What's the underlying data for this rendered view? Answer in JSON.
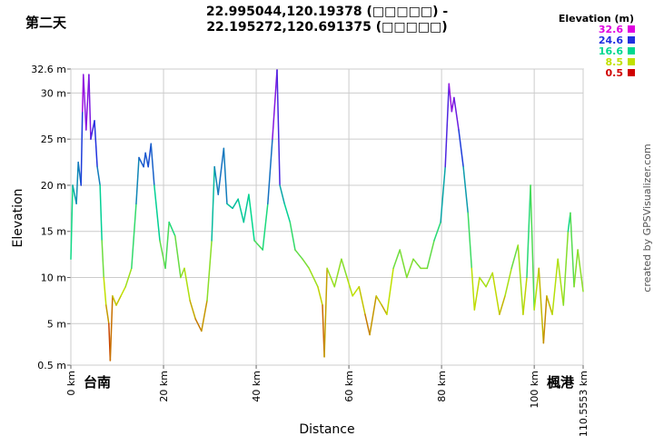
{
  "chart_data": {
    "type": "line",
    "corner_label": "第二天",
    "title_lines": [
      "22.995044,120.19378 (□□□□□) -",
      "22.195272,120.691375 (□□□□□)"
    ],
    "x_label": "Distance",
    "y_label": "Elevation",
    "credit": "created by GPSVisualizer.com",
    "annotations": [
      "台南",
      "楓港"
    ],
    "legend_title": "Elevation (m)",
    "color_scale": [
      {
        "value": 32.6,
        "color": "#e000e0"
      },
      {
        "value": 24.6,
        "color": "#2030e0"
      },
      {
        "value": 16.6,
        "color": "#00d890"
      },
      {
        "value": 8.5,
        "color": "#c0e000"
      },
      {
        "value": 0.5,
        "color": "#d00000"
      }
    ],
    "grid": true,
    "xlim": [
      0,
      110.5553
    ],
    "ylim": [
      0.5,
      32.6
    ],
    "xticks": [
      {
        "value": 0,
        "label": "0 km"
      },
      {
        "value": 20,
        "label": "20 km"
      },
      {
        "value": 40,
        "label": "40 km"
      },
      {
        "value": 60,
        "label": "60 km"
      },
      {
        "value": 80,
        "label": "80 km"
      },
      {
        "value": 100,
        "label": "100 km"
      },
      {
        "value": 110.5553,
        "label": "110.5553 km"
      }
    ],
    "yticks": [
      {
        "value": 0.5,
        "label": "0.5 m"
      },
      {
        "value": 5,
        "label": "5 m"
      },
      {
        "value": 10,
        "label": "10 m"
      },
      {
        "value": 15,
        "label": "15 m"
      },
      {
        "value": 20,
        "label": "20 m"
      },
      {
        "value": 25,
        "label": "25 m"
      },
      {
        "value": 30,
        "label": "30 m"
      },
      {
        "value": 32.6,
        "label": "32.6 m"
      }
    ],
    "x": [
      0,
      0.4,
      1.2,
      1.6,
      2.2,
      2.5,
      2.7,
      3.3,
      3.9,
      4.3,
      5.1,
      5.7,
      6.3,
      6.7,
      7.1,
      7.6,
      8.2,
      8.5,
      9.0,
      9.8,
      10.8,
      11.8,
      13.1,
      14.1,
      14.7,
      15.7,
      16.1,
      16.7,
      17.3,
      18.0,
      19.2,
      20.4,
      21.2,
      22.5,
      23.7,
      24.5,
      25.7,
      26.9,
      28.2,
      29.4,
      30.4,
      31.0,
      31.8,
      33.0,
      33.7,
      34.9,
      36.1,
      37.3,
      38.4,
      39.6,
      41.4,
      42.5,
      43.5,
      44.5,
      45.1,
      46.1,
      47.3,
      48.4,
      50.0,
      51.4,
      53.3,
      54.3,
      54.7,
      55.3,
      56.9,
      58.4,
      59.6,
      60.8,
      62.2,
      63.5,
      64.5,
      65.9,
      67.1,
      68.2,
      69.6,
      71.0,
      72.5,
      73.9,
      75.5,
      76.9,
      78.4,
      79.8,
      80.8,
      81.6,
      82.2,
      82.7,
      83.7,
      84.7,
      85.7,
      86.5,
      87.1,
      88.2,
      89.6,
      91.0,
      92.5,
      93.7,
      95.1,
      96.5,
      97.6,
      98.4,
      99.2,
      100.0,
      101.0,
      102.0,
      102.7,
      103.9,
      105.1,
      106.3,
      107.3,
      107.8,
      108.6,
      109.4,
      110.5553
    ],
    "series": [
      {
        "name": "Elevation",
        "values": [
          12,
          20,
          18,
          22.5,
          20,
          28,
          32,
          26,
          32,
          25,
          27,
          22,
          20,
          14,
          10,
          7,
          5,
          1,
          8,
          7,
          8,
          9,
          11,
          18,
          23,
          22,
          23.5,
          22,
          24.5,
          20,
          14,
          11,
          16,
          14.5,
          10,
          11,
          7.5,
          5.5,
          4.2,
          7.5,
          14,
          22,
          19,
          24,
          18,
          17.5,
          18.5,
          16,
          19,
          14,
          13,
          18,
          25,
          32.5,
          20,
          18,
          16,
          13,
          12,
          11,
          9,
          7,
          1.4,
          11,
          9,
          12,
          10,
          8,
          9,
          6,
          3.8,
          8,
          7,
          6,
          11,
          13,
          10,
          12,
          11,
          11,
          14,
          16,
          22,
          31,
          28,
          29.5,
          26,
          22,
          17,
          11,
          6.5,
          10,
          9,
          10.5,
          6,
          8,
          11,
          13.5,
          6,
          10,
          20,
          6.5,
          11,
          2.9,
          8,
          6,
          12,
          7,
          15,
          17,
          9,
          13,
          8.5
        ]
      }
    ]
  }
}
